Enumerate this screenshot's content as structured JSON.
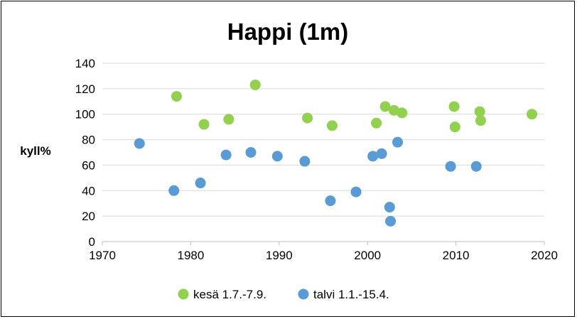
{
  "chart_data": {
    "type": "scatter",
    "title": "Happi (1m)",
    "xlabel": "",
    "ylabel": "kyll%",
    "xlim": [
      1970,
      2020
    ],
    "ylim": [
      0,
      140
    ],
    "xticks": [
      1970,
      1980,
      1990,
      2000,
      2010,
      2020
    ],
    "yticks": [
      0,
      20,
      40,
      60,
      80,
      100,
      120,
      140
    ],
    "grid": "horizontal",
    "legend_position": "bottom",
    "series": [
      {
        "name": "kesä 1.7.-7.9.",
        "color": "#92d050",
        "points": [
          [
            1978.4,
            114
          ],
          [
            1981.5,
            92
          ],
          [
            1984.3,
            96
          ],
          [
            1987.3,
            123
          ],
          [
            1993.2,
            97
          ],
          [
            1996.0,
            91
          ],
          [
            2001.0,
            93
          ],
          [
            2002.0,
            106
          ],
          [
            2003.0,
            103
          ],
          [
            2003.9,
            101
          ],
          [
            2009.8,
            106
          ],
          [
            2009.9,
            90
          ],
          [
            2012.7,
            102
          ],
          [
            2012.8,
            95
          ],
          [
            2018.6,
            100
          ]
        ]
      },
      {
        "name": "talvi 1.1.-15.4.",
        "color": "#5b9bd5",
        "points": [
          [
            1974.2,
            77
          ],
          [
            1978.1,
            40
          ],
          [
            1981.1,
            46
          ],
          [
            1984.0,
            68
          ],
          [
            1986.8,
            70
          ],
          [
            1989.8,
            67
          ],
          [
            1992.9,
            63
          ],
          [
            1995.8,
            32
          ],
          [
            1998.7,
            39
          ],
          [
            2000.6,
            67
          ],
          [
            2001.6,
            69
          ],
          [
            2002.5,
            27
          ],
          [
            2002.6,
            16
          ],
          [
            2003.4,
            78
          ],
          [
            2009.4,
            59
          ],
          [
            2012.3,
            59
          ]
        ]
      }
    ]
  }
}
